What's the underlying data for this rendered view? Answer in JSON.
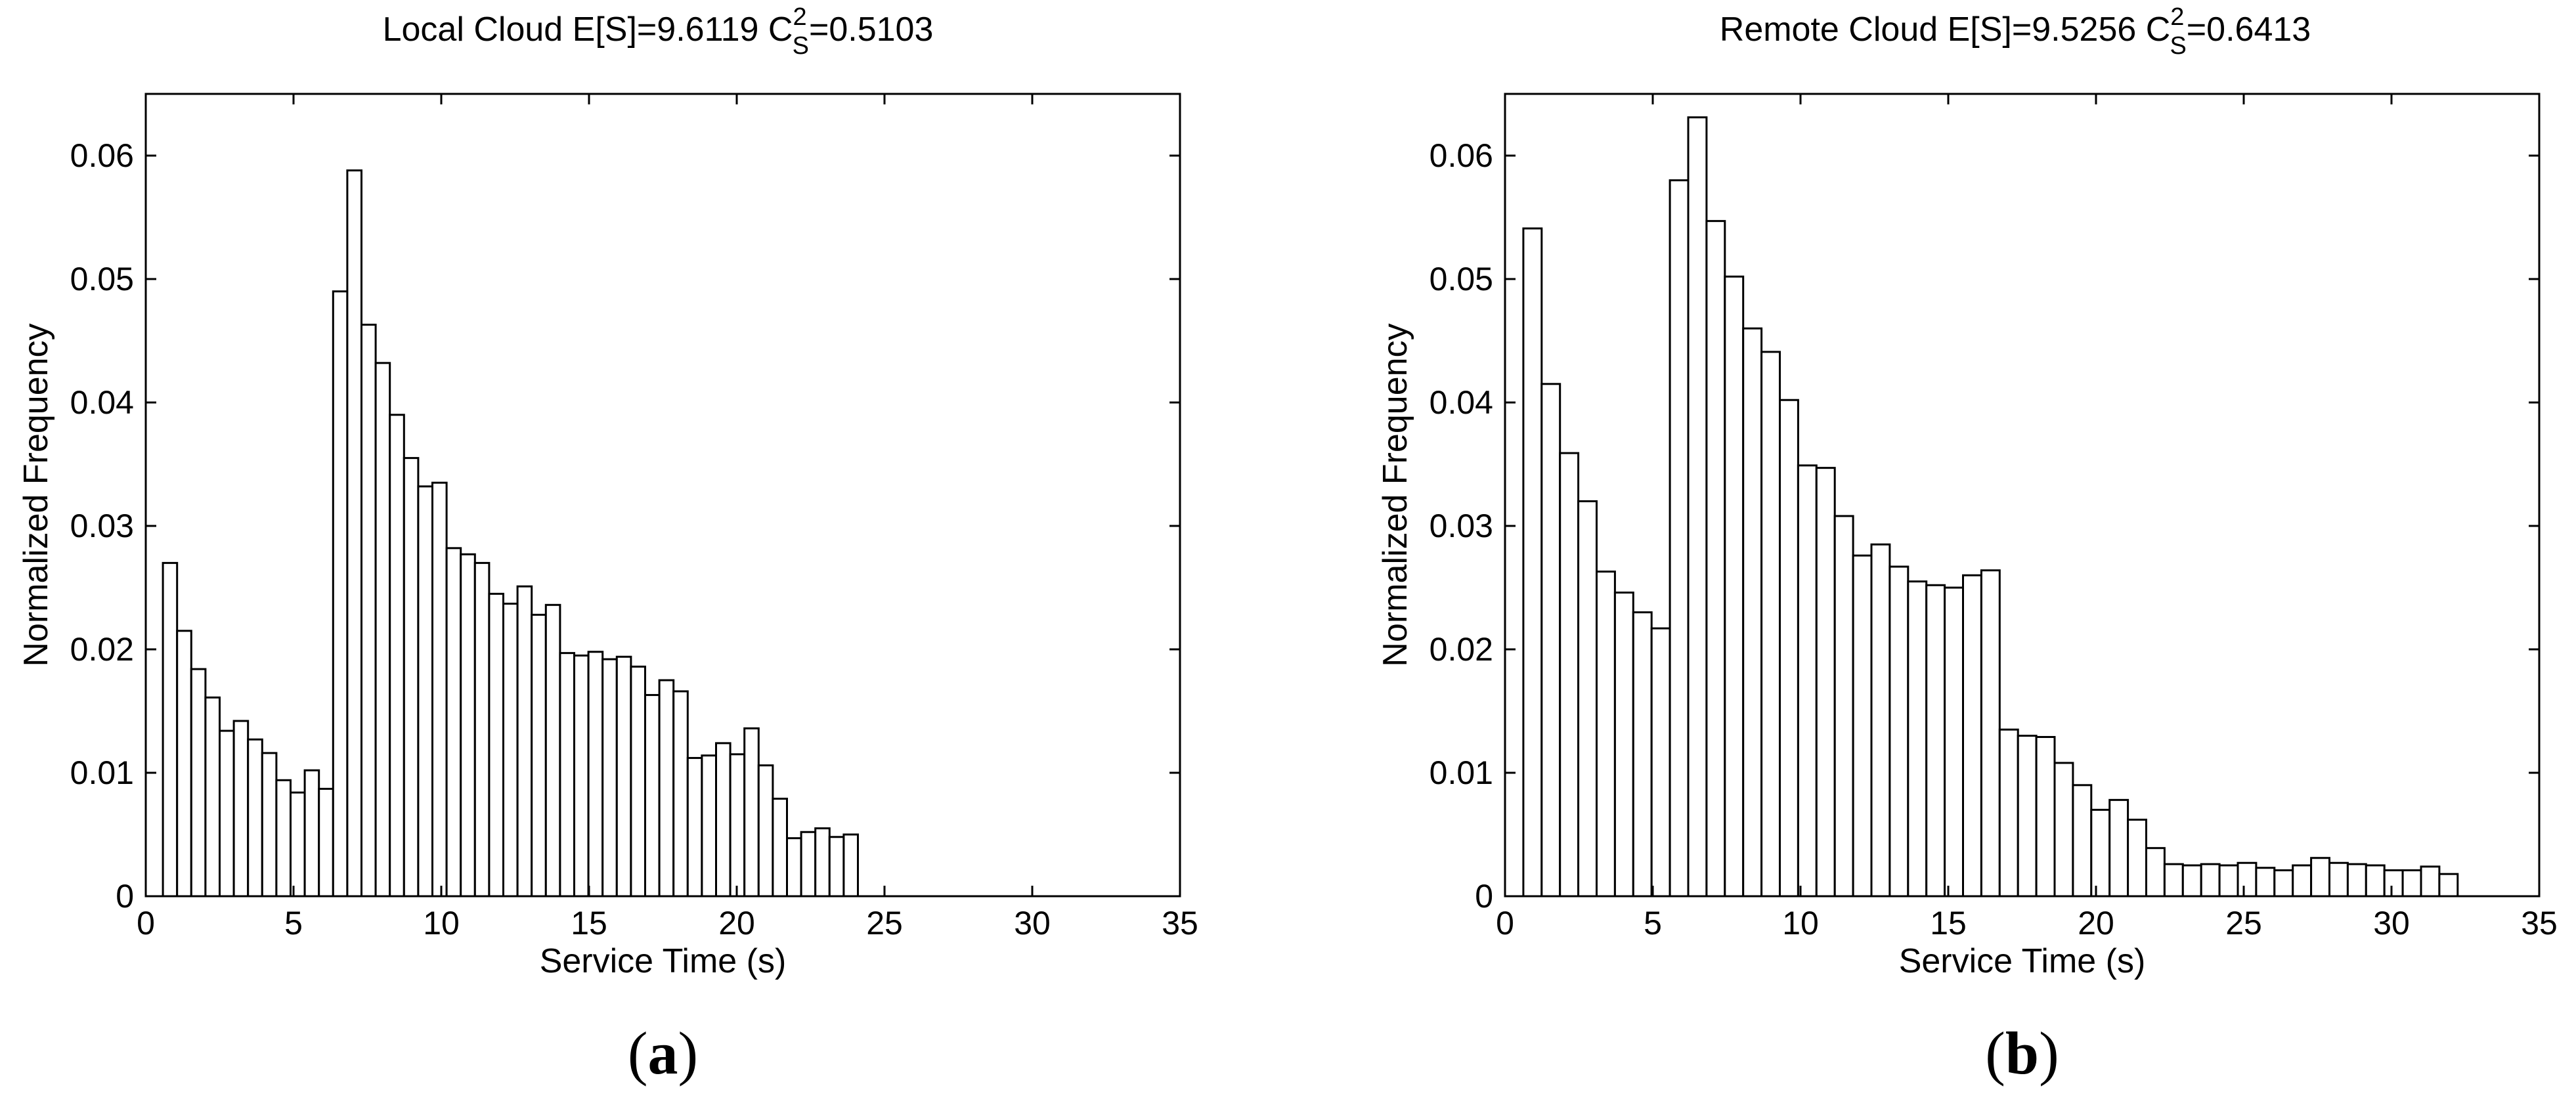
{
  "chart_data": [
    {
      "type": "bar",
      "panel_label": "a",
      "title": {
        "prefix": "Local Cloud  E[S]=9.6119  ",
        "symbol": "C",
        "superscript": "2",
        "subscript": "S",
        "suffix": "=0.5103"
      },
      "xlabel": "Service Time (s)",
      "ylabel": "Normalized Frequency",
      "xlim": [
        0,
        35
      ],
      "ylim": [
        0,
        0.065
      ],
      "xticks": [
        0,
        5,
        10,
        15,
        20,
        25,
        30,
        35
      ],
      "yticks": [
        0,
        0.01,
        0.02,
        0.03,
        0.04,
        0.05,
        0.06
      ],
      "xtick_labels": [
        "0",
        "5",
        "10",
        "15",
        "20",
        "25",
        "30",
        "35"
      ],
      "ytick_labels": [
        "0",
        "0.01",
        "0.02",
        "0.03",
        "0.04",
        "0.05",
        "0.06"
      ],
      "grid": false,
      "bin_width": 0.48,
      "bin_start": 0.58,
      "values": [
        0.027,
        0.0215,
        0.0184,
        0.0161,
        0.0134,
        0.0142,
        0.0127,
        0.0116,
        0.0094,
        0.0084,
        0.0102,
        0.0087,
        0.049,
        0.0588,
        0.0463,
        0.0432,
        0.039,
        0.0355,
        0.0332,
        0.0335,
        0.0282,
        0.0277,
        0.027,
        0.0245,
        0.0237,
        0.0251,
        0.0228,
        0.0236,
        0.0197,
        0.0195,
        0.0198,
        0.0192,
        0.0194,
        0.0186,
        0.0163,
        0.0175,
        0.0166,
        0.0112,
        0.0114,
        0.0124,
        0.0115,
        0.0136,
        0.0106,
        0.0079,
        0.0047,
        0.0052,
        0.0055,
        0.0048,
        0.005
      ]
    },
    {
      "type": "bar",
      "panel_label": "b",
      "title": {
        "prefix": "Remote Cloud  E[S]=9.5256  ",
        "symbol": "C",
        "superscript": "2",
        "subscript": "S",
        "suffix": "=0.6413"
      },
      "xlabel": "Service Time (s)",
      "ylabel": "Normalized Frequency",
      "xlim": [
        0,
        35
      ],
      "ylim": [
        0,
        0.065
      ],
      "xticks": [
        0,
        5,
        10,
        15,
        20,
        25,
        30,
        35
      ],
      "yticks": [
        0,
        0.01,
        0.02,
        0.03,
        0.04,
        0.05,
        0.06
      ],
      "xtick_labels": [
        "0",
        "5",
        "10",
        "15",
        "20",
        "25",
        "30",
        "35"
      ],
      "ytick_labels": [
        "0",
        "0.01",
        "0.02",
        "0.03",
        "0.04",
        "0.05",
        "0.06"
      ],
      "grid": false,
      "bin_width": 0.62,
      "bin_start": 0.62,
      "values": [
        0.0541,
        0.0415,
        0.0359,
        0.032,
        0.0263,
        0.0246,
        0.023,
        0.0217,
        0.058,
        0.0631,
        0.0547,
        0.0502,
        0.046,
        0.0441,
        0.0402,
        0.0349,
        0.0347,
        0.0308,
        0.0276,
        0.0285,
        0.0267,
        0.0255,
        0.0252,
        0.025,
        0.026,
        0.0264,
        0.0135,
        0.013,
        0.0129,
        0.0108,
        0.009,
        0.007,
        0.0078,
        0.0062,
        0.0039,
        0.0026,
        0.0025,
        0.0026,
        0.0025,
        0.0027,
        0.0023,
        0.0021,
        0.0025,
        0.0031,
        0.0027,
        0.0026,
        0.0025,
        0.0021,
        0.0021,
        0.0024,
        0.0018
      ]
    }
  ]
}
